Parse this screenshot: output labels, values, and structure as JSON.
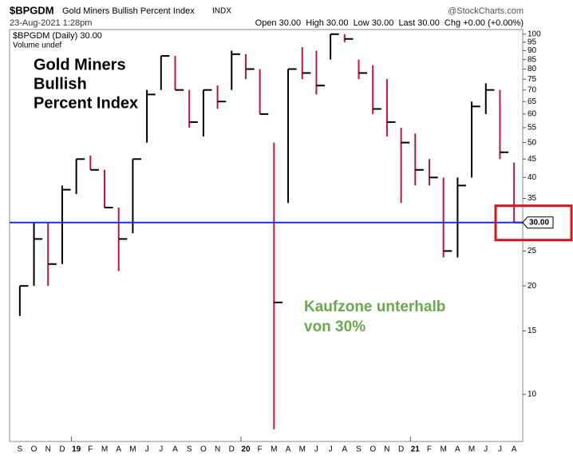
{
  "chart_data": {
    "type": "ohlc",
    "symbol": "$BPGDM",
    "title": "Gold Miners Bullish Percent Index",
    "exchange": "INDX",
    "source": "@StockCharts.com",
    "timestamp": "23-Aug-2021 1:28pm",
    "stats": "Open 30.00  High 30.00  Low 30.00  Last 30.00  Chg +0.00 (+0.00%)",
    "legend": [
      "$BPGDM (Daily) 30.00",
      "Volume undef"
    ],
    "annotation_title": [
      "Gold Miners",
      "Bullish",
      "Percent Index"
    ],
    "annotation_zone": [
      "Kaufzone unterhalb",
      "von 30%"
    ],
    "categories": [
      "S",
      "O",
      "N",
      "D",
      "19",
      "F",
      "M",
      "A",
      "M",
      "J",
      "J",
      "A",
      "S",
      "O",
      "N",
      "D",
      "20",
      "F",
      "M",
      "A",
      "M",
      "J",
      "J",
      "A",
      "S",
      "O",
      "N",
      "D",
      "21",
      "F",
      "M",
      "A",
      "M",
      "J",
      "J",
      "A"
    ],
    "high": [
      20,
      30,
      30,
      38,
      45,
      46,
      42,
      33,
      45,
      70,
      87,
      87,
      70,
      70,
      72,
      90,
      88,
      80,
      50,
      80,
      92,
      90,
      100,
      100,
      85,
      82,
      75,
      55,
      53,
      45,
      40,
      40,
      65,
      73,
      70,
      44
    ],
    "low": [
      16.5,
      20,
      20,
      23,
      36,
      42,
      33,
      22,
      28,
      50,
      70,
      70,
      55,
      52,
      62,
      70,
      75,
      60,
      8,
      34,
      75,
      68,
      85,
      95,
      75,
      60,
      52,
      34,
      38,
      38,
      24,
      24,
      40,
      60,
      45,
      30
    ],
    "close": [
      20,
      27,
      23,
      37,
      45,
      42,
      33,
      27,
      45,
      68,
      87,
      70,
      57,
      70,
      65,
      88,
      80,
      60,
      18,
      80,
      78,
      72,
      100,
      97,
      78,
      62,
      57,
      50,
      42,
      40,
      25,
      38,
      63,
      70,
      47,
      30
    ],
    "color": "#000000",
    "ylim": [
      7.4,
      103
    ],
    "log_scale": true,
    "yticks": [
      10,
      15,
      20,
      25,
      30,
      35,
      40,
      45,
      50,
      55,
      60,
      65,
      70,
      75,
      80,
      85,
      90,
      95,
      100
    ],
    "reference_line": 30,
    "reference_color": "#1a33cc",
    "last_value_label": {
      "value": 30,
      "label": "30.00"
    }
  }
}
